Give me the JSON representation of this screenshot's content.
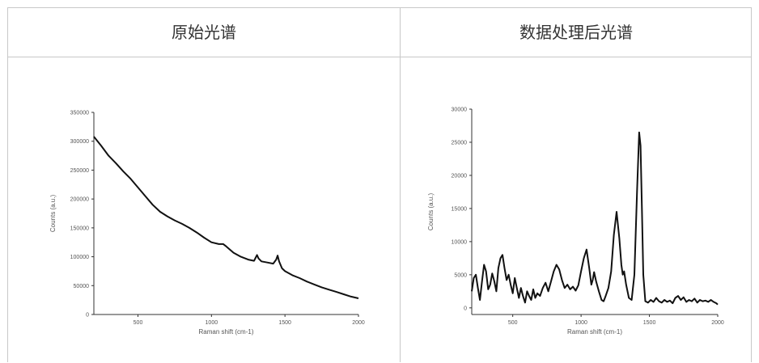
{
  "table": {
    "headers": [
      "原始光谱",
      "数据处理后光谱"
    ]
  },
  "chart_data": [
    {
      "type": "line",
      "title": "",
      "xlabel": "Raman shift (cm-1)",
      "ylabel": "Counts (a.u.)",
      "xlim": [
        200,
        2000
      ],
      "ylim": [
        0,
        350000
      ],
      "xticks": [
        500,
        1000,
        1500,
        2000
      ],
      "yticks": [
        0,
        50000,
        100000,
        150000,
        200000,
        250000,
        300000,
        350000
      ],
      "ytick_labels": [
        "0",
        "50000",
        "100000",
        "150000",
        "200000",
        "250000",
        "300000",
        "350000"
      ],
      "grid": false,
      "line_color": "#111111",
      "x": [
        200,
        250,
        300,
        350,
        400,
        450,
        500,
        550,
        600,
        650,
        700,
        750,
        800,
        850,
        900,
        950,
        1000,
        1050,
        1080,
        1100,
        1150,
        1200,
        1250,
        1290,
        1300,
        1310,
        1320,
        1340,
        1380,
        1420,
        1440,
        1450,
        1460,
        1480,
        1500,
        1550,
        1600,
        1650,
        1700,
        1750,
        1800,
        1850,
        1900,
        1950,
        2000
      ],
      "y": [
        308000,
        292000,
        275000,
        262000,
        248000,
        235000,
        220000,
        205000,
        190000,
        178000,
        170000,
        163000,
        157000,
        150000,
        142000,
        133000,
        125000,
        122000,
        122000,
        118000,
        107000,
        100000,
        95000,
        93000,
        98000,
        103000,
        97000,
        92000,
        90000,
        88000,
        95000,
        102000,
        92000,
        80000,
        75000,
        68000,
        63000,
        57000,
        52000,
        47000,
        43000,
        39000,
        35000,
        31000,
        28000
      ]
    },
    {
      "type": "line",
      "title": "",
      "xlabel": "Raman shift (cm-1)",
      "ylabel": "Counts (a.u.)",
      "xlim": [
        200,
        2000
      ],
      "ylim": [
        -1000,
        30000
      ],
      "xticks": [
        500,
        1000,
        1500,
        2000
      ],
      "yticks": [
        0,
        5000,
        10000,
        15000,
        20000,
        25000,
        30000
      ],
      "ytick_labels": [
        "0",
        "5000",
        "10000",
        "15000",
        "20000",
        "25000",
        "30000"
      ],
      "grid": false,
      "line_color": "#111111",
      "x": [
        200,
        215,
        230,
        245,
        260,
        275,
        290,
        305,
        320,
        335,
        350,
        365,
        380,
        395,
        410,
        425,
        440,
        455,
        470,
        485,
        500,
        515,
        530,
        545,
        560,
        575,
        590,
        605,
        620,
        635,
        650,
        665,
        680,
        700,
        720,
        740,
        760,
        780,
        800,
        820,
        840,
        860,
        880,
        900,
        920,
        940,
        960,
        980,
        1000,
        1020,
        1040,
        1060,
        1075,
        1085,
        1095,
        1110,
        1130,
        1150,
        1165,
        1180,
        1200,
        1220,
        1240,
        1260,
        1280,
        1295,
        1305,
        1315,
        1330,
        1350,
        1370,
        1390,
        1410,
        1425,
        1435,
        1445,
        1455,
        1470,
        1490,
        1510,
        1530,
        1550,
        1570,
        1590,
        1610,
        1630,
        1650,
        1670,
        1690,
        1710,
        1730,
        1750,
        1770,
        1790,
        1810,
        1830,
        1850,
        1870,
        1890,
        1910,
        1930,
        1950,
        1970,
        1990,
        2000
      ],
      "y": [
        2500,
        4500,
        5000,
        3000,
        1200,
        4000,
        6500,
        5500,
        2800,
        3500,
        5200,
        4000,
        2500,
        6000,
        7500,
        8000,
        6000,
        4200,
        5000,
        3500,
        2200,
        4500,
        3000,
        1500,
        3000,
        1800,
        800,
        2500,
        1800,
        1200,
        2800,
        1500,
        2200,
        1800,
        3000,
        3800,
        2500,
        4000,
        5500,
        6500,
        5800,
        4200,
        3000,
        3500,
        2800,
        3200,
        2600,
        3400,
        5500,
        7500,
        8800,
        6000,
        3500,
        4200,
        5400,
        4000,
        2500,
        1200,
        1000,
        1800,
        3000,
        5500,
        11000,
        14500,
        10500,
        6500,
        5000,
        5500,
        3500,
        1500,
        1200,
        5000,
        18000,
        26500,
        24500,
        15000,
        5000,
        1000,
        800,
        1200,
        900,
        1500,
        1000,
        800,
        1200,
        900,
        1100,
        700,
        1500,
        1800,
        1200,
        1600,
        900,
        1200,
        1000,
        1400,
        800,
        1200,
        1000,
        1100,
        900,
        1200,
        900,
        700,
        500
      ]
    }
  ]
}
